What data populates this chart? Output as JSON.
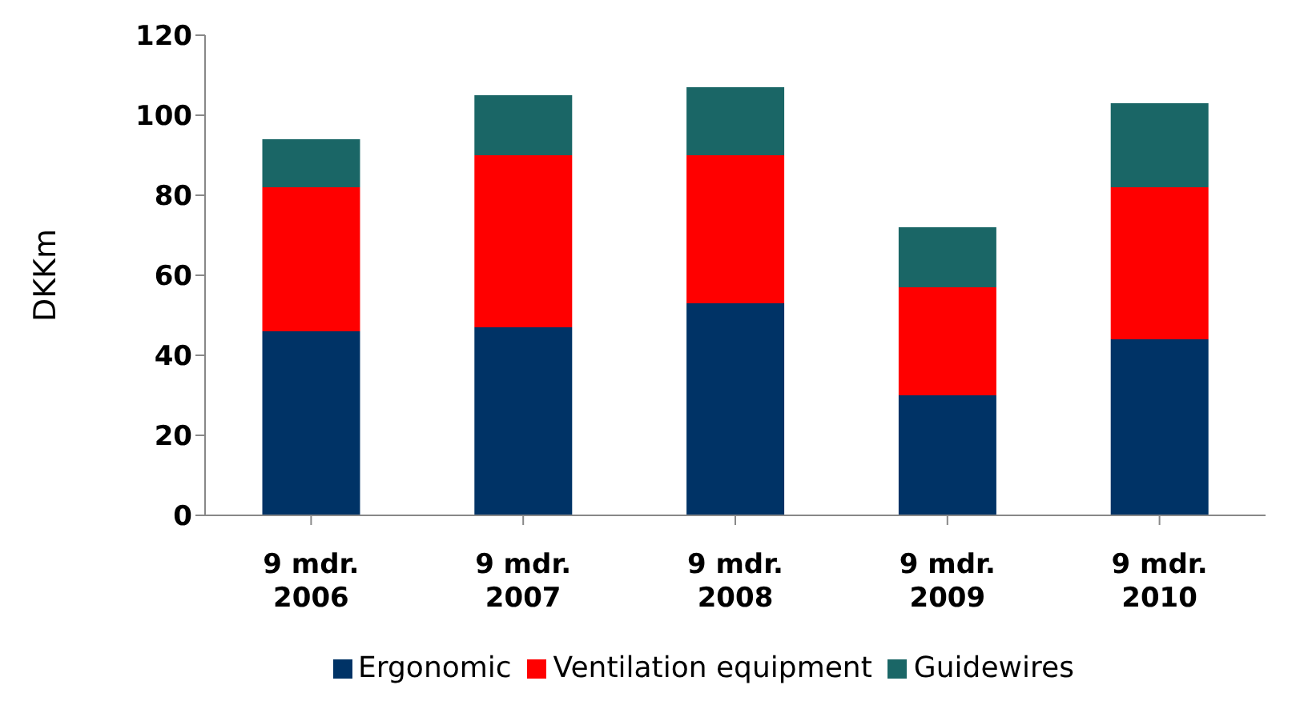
{
  "chart_data": {
    "type": "bar",
    "stacked": true,
    "ylabel": "DKKm",
    "categories": [
      "9 mdr.\n2006",
      "9 mdr.\n2007",
      "9 mdr.\n2008",
      "9 mdr.\n2009",
      "9 mdr.\n2010"
    ],
    "series": [
      {
        "name": "Ergonomic",
        "color": "#003366",
        "values": [
          46,
          47,
          53,
          30,
          44
        ]
      },
      {
        "name": "Ventilation equipment",
        "color": "#ff0000",
        "values": [
          36,
          43,
          37,
          27,
          38
        ]
      },
      {
        "name": "Guidewires",
        "color": "#1a6666",
        "values": [
          12,
          15,
          17,
          15,
          21
        ]
      }
    ],
    "ylim": [
      0,
      120
    ],
    "yticks": [
      0,
      20,
      40,
      60,
      80,
      100,
      120
    ],
    "grid": false,
    "legend": "bottom"
  }
}
